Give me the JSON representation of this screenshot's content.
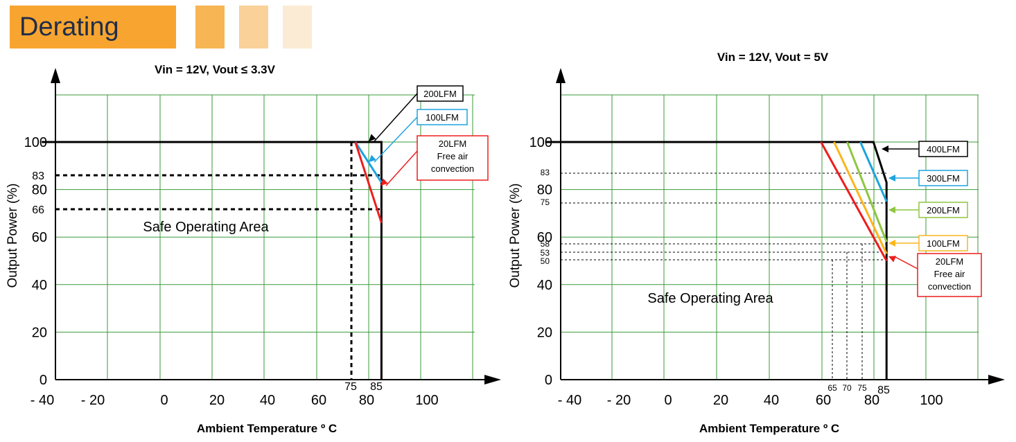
{
  "header": {
    "title": "Derating"
  },
  "chart_data": [
    {
      "type": "line",
      "title": "Vin = 12V, Vout ≤ 3.3V",
      "xlabel": "Ambient Temperature  º C",
      "ylabel": "Output Power (%)",
      "x_ticks": [
        "- 40",
        "- 20",
        "0",
        "20",
        "40",
        "60",
        "80",
        "100"
      ],
      "y_ticks": [
        "0",
        "20",
        "40",
        "60",
        "80",
        "100"
      ],
      "extra_x_labels": [
        "75",
        "85"
      ],
      "extra_y_labels": [
        "83",
        "66"
      ],
      "area_label": "Safe Operating Area",
      "series": [
        {
          "name": "200LFM",
          "color": "#000000",
          "points": [
            [
              -45,
              100
            ],
            [
              85,
              100
            ],
            [
              85,
              0
            ]
          ]
        },
        {
          "name": "100LFM",
          "color": "#1ca3e0",
          "points": [
            [
              75,
              100
            ],
            [
              85,
              83
            ]
          ]
        },
        {
          "name": "20LFM",
          "color": "#ee1c1c",
          "points": [
            [
              75,
              100
            ],
            [
              85,
              66
            ]
          ]
        }
      ],
      "legend": [
        {
          "lines": [
            "200LFM"
          ],
          "color": "#000000"
        },
        {
          "lines": [
            "100LFM"
          ],
          "color": "#1ca3e0"
        },
        {
          "lines": [
            "20LFM",
            "Free air",
            "convection"
          ],
          "color": "#ee1c1c"
        }
      ]
    },
    {
      "type": "line",
      "title": "Vin = 12V, Vout = 5V",
      "xlabel": "Ambient Temperature  º C",
      "ylabel": "Output Power (%)",
      "x_ticks": [
        "- 40",
        "- 20",
        "0",
        "20",
        "40",
        "60",
        "80",
        "100"
      ],
      "y_ticks": [
        "0",
        "20",
        "40",
        "60",
        "80",
        "100"
      ],
      "extra_x_labels": [
        "65",
        "70",
        "75",
        "85"
      ],
      "extra_y_labels": [
        "83",
        "75",
        "58",
        "53",
        "50"
      ],
      "area_label": "Safe Operating Area",
      "series": [
        {
          "name": "400LFM",
          "color": "#000000",
          "points": [
            [
              -45,
              100
            ],
            [
              80,
              100
            ],
            [
              85,
              83
            ],
            [
              85,
              0
            ]
          ]
        },
        {
          "name": "300LFM",
          "color": "#1ca3e0",
          "points": [
            [
              75,
              100
            ],
            [
              85,
              75
            ]
          ]
        },
        {
          "name": "200LFM",
          "color": "#8dc63f",
          "points": [
            [
              70,
              100
            ],
            [
              85,
              58
            ]
          ]
        },
        {
          "name": "100LFM",
          "color": "#fbb61b",
          "points": [
            [
              65,
              100
            ],
            [
              85,
              53
            ]
          ]
        },
        {
          "name": "20LFM",
          "color": "#ee1c1c",
          "points": [
            [
              60,
              100
            ],
            [
              85,
              50
            ]
          ]
        }
      ],
      "legend": [
        {
          "lines": [
            "400LFM"
          ],
          "color": "#000000"
        },
        {
          "lines": [
            "300LFM"
          ],
          "color": "#1ca3e0"
        },
        {
          "lines": [
            "200LFM"
          ],
          "color": "#8dc63f"
        },
        {
          "lines": [
            "100LFM"
          ],
          "color": "#fbb61b"
        },
        {
          "lines": [
            "20LFM",
            "Free air",
            "convection"
          ],
          "color": "#ee1c1c"
        }
      ]
    }
  ]
}
